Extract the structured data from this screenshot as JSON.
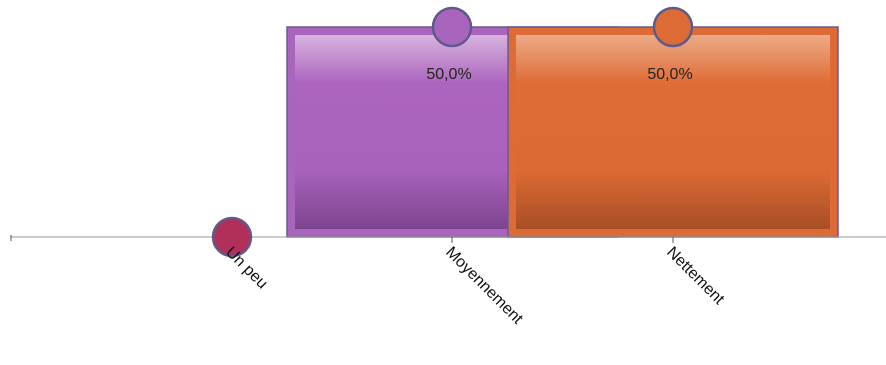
{
  "chart_data": {
    "type": "bar",
    "categories": [
      "Un peu",
      "Moyennement",
      "Nettement"
    ],
    "values": [
      0,
      50,
      50
    ],
    "value_labels": [
      "",
      "50,0%",
      "50,0%"
    ],
    "colors": [
      "#b0305a",
      "#a964bd",
      "#dd6b35"
    ],
    "ylim": [
      0,
      50
    ],
    "grid": false,
    "legend": "none",
    "title": "",
    "xlabel": "",
    "ylabel": ""
  }
}
